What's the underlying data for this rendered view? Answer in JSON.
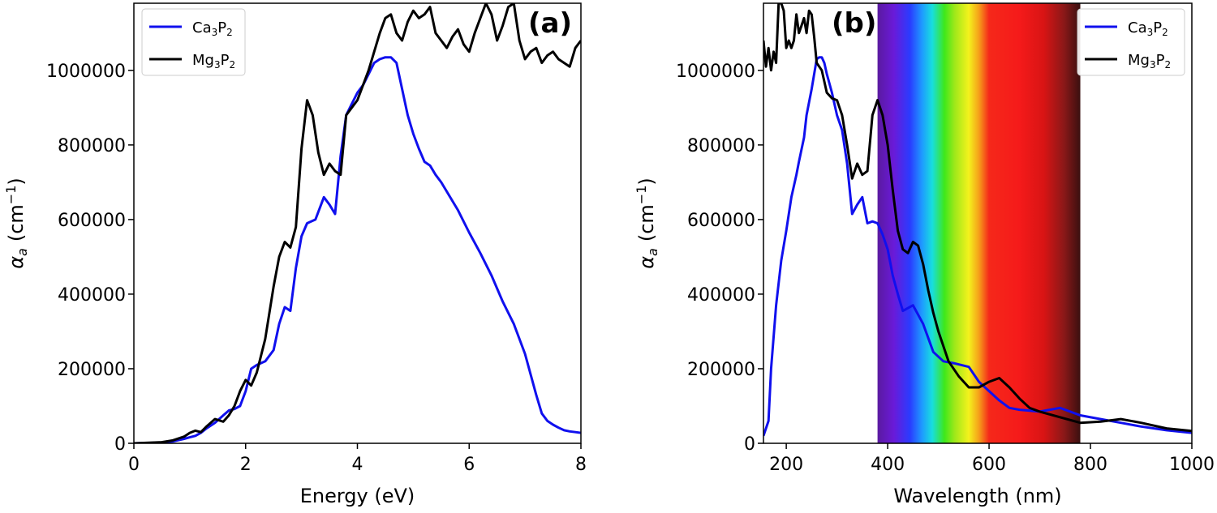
{
  "chart_data": [
    {
      "type": "line",
      "panel_label": "(a)",
      "xlabel": "Energy (eV)",
      "ylabel_main": "α",
      "ylabel_sub": "a",
      "ylabel_unit": "(cm",
      "ylabel_exp": "−1",
      "ylabel_close": ")",
      "xlim": [
        0,
        8
      ],
      "ylim": [
        0,
        1180000
      ],
      "xticks": [
        0,
        2,
        4,
        6,
        8
      ],
      "xtick_labels": [
        "0",
        "2",
        "4",
        "6",
        "8"
      ],
      "yticks": [
        0,
        200000,
        400000,
        600000,
        800000,
        1000000
      ],
      "ytick_labels": [
        "0",
        "200000",
        "400000",
        "600000",
        "800000",
        "1000000"
      ],
      "grid": false,
      "legend_position": "top-left",
      "series": [
        {
          "name": "Ca3P2",
          "name_parts": [
            "Ca",
            "3",
            "P",
            "2"
          ],
          "color": "#1010ee",
          "x": [
            0,
            0.5,
            0.7,
            0.9,
            1.0,
            1.1,
            1.2,
            1.3,
            1.45,
            1.6,
            1.7,
            1.8,
            1.9,
            2.0,
            2.1,
            2.2,
            2.35,
            2.5,
            2.6,
            2.7,
            2.8,
            2.9,
            3.0,
            3.1,
            3.25,
            3.4,
            3.5,
            3.6,
            3.7,
            3.8,
            3.9,
            4.0,
            4.1,
            4.2,
            4.3,
            4.4,
            4.5,
            4.6,
            4.7,
            4.8,
            4.9,
            5.0,
            5.1,
            5.2,
            5.3,
            5.4,
            5.5,
            5.6,
            5.8,
            6.0,
            6.2,
            6.4,
            6.6,
            6.8,
            7.0,
            7.2,
            7.3,
            7.4,
            7.5,
            7.6,
            7.7,
            7.8,
            7.9,
            8.0
          ],
          "y": [
            0,
            2000,
            5000,
            12000,
            16000,
            20000,
            28000,
            40000,
            55000,
            75000,
            88000,
            92000,
            100000,
            140000,
            200000,
            210000,
            220000,
            250000,
            320000,
            365000,
            355000,
            470000,
            555000,
            590000,
            600000,
            660000,
            640000,
            615000,
            770000,
            880000,
            910000,
            940000,
            960000,
            990000,
            1020000,
            1030000,
            1035000,
            1035000,
            1020000,
            950000,
            880000,
            830000,
            790000,
            755000,
            745000,
            720000,
            700000,
            675000,
            625000,
            565000,
            510000,
            450000,
            380000,
            320000,
            240000,
            130000,
            80000,
            60000,
            50000,
            42000,
            35000,
            32000,
            30000,
            28000
          ]
        },
        {
          "name": "Mg3P2",
          "name_parts": [
            "Mg",
            "3",
            "P",
            "2"
          ],
          "color": "#000000",
          "x": [
            0,
            0.5,
            0.7,
            0.9,
            1.0,
            1.1,
            1.2,
            1.3,
            1.45,
            1.6,
            1.7,
            1.8,
            1.9,
            2.0,
            2.1,
            2.2,
            2.35,
            2.5,
            2.6,
            2.7,
            2.8,
            2.9,
            3.0,
            3.1,
            3.2,
            3.3,
            3.4,
            3.5,
            3.6,
            3.7,
            3.8,
            3.9,
            4.0,
            4.1,
            4.2,
            4.3,
            4.4,
            4.5,
            4.6,
            4.7,
            4.8,
            4.9,
            5.0,
            5.1,
            5.2,
            5.3,
            5.4,
            5.5,
            5.6,
            5.7,
            5.8,
            5.9,
            6.0,
            6.1,
            6.2,
            6.3,
            6.4,
            6.5,
            6.6,
            6.7,
            6.8,
            6.9,
            7.0,
            7.1,
            7.2,
            7.3,
            7.4,
            7.5,
            7.6,
            7.7,
            7.8,
            7.9,
            8.0
          ],
          "y": [
            0,
            3000,
            8000,
            18000,
            28000,
            34000,
            30000,
            45000,
            65000,
            58000,
            75000,
            100000,
            140000,
            170000,
            155000,
            190000,
            280000,
            420000,
            500000,
            540000,
            525000,
            580000,
            790000,
            920000,
            880000,
            780000,
            720000,
            750000,
            730000,
            720000,
            880000,
            900000,
            920000,
            960000,
            1000000,
            1050000,
            1100000,
            1140000,
            1150000,
            1100000,
            1080000,
            1130000,
            1160000,
            1140000,
            1150000,
            1170000,
            1100000,
            1080000,
            1060000,
            1090000,
            1110000,
            1070000,
            1050000,
            1100000,
            1140000,
            1180000,
            1150000,
            1080000,
            1120000,
            1170000,
            1180000,
            1080000,
            1030000,
            1050000,
            1060000,
            1020000,
            1040000,
            1050000,
            1030000,
            1020000,
            1010000,
            1060000,
            1080000
          ]
        }
      ]
    },
    {
      "type": "line",
      "panel_label": "(b)",
      "xlabel": "Wavelength (nm)",
      "ylabel_main": "α",
      "ylabel_sub": "a",
      "ylabel_unit": "(cm",
      "ylabel_exp": "−1",
      "ylabel_close": ")",
      "xlim": [
        155,
        1000
      ],
      "ylim": [
        0,
        1180000
      ],
      "xticks": [
        200,
        400,
        600,
        800,
        1000
      ],
      "xtick_labels": [
        "200",
        "400",
        "600",
        "800",
        "1000"
      ],
      "yticks": [
        0,
        200000,
        400000,
        600000,
        800000,
        1000000
      ],
      "ytick_labels": [
        "0",
        "200000",
        "400000",
        "600000",
        "800000",
        "1000000"
      ],
      "grid": false,
      "legend_position": "top-right",
      "visible_band": {
        "range_nm": [
          380,
          780
        ],
        "colors": [
          "#5a1aa0",
          "#6a1ad8",
          "#2a3cff",
          "#1e9bff",
          "#18dede",
          "#3ee81a",
          "#9ee81a",
          "#f4f21c",
          "#f5a01a",
          "#f5281a",
          "#f51a1a",
          "#d81414",
          "#8a1818",
          "#3a1010"
        ],
        "stops": [
          0,
          0.08,
          0.16,
          0.22,
          0.27,
          0.33,
          0.38,
          0.45,
          0.5,
          0.55,
          0.7,
          0.82,
          0.92,
          1
        ]
      },
      "series": [
        {
          "name": "Ca3P2",
          "name_parts": [
            "Ca",
            "3",
            "P",
            "2"
          ],
          "color": "#1010ee",
          "x": [
            155,
            165,
            170,
            180,
            190,
            200,
            210,
            220,
            225,
            235,
            240,
            250,
            260,
            265,
            270,
            275,
            280,
            290,
            300,
            310,
            320,
            330,
            340,
            350,
            360,
            370,
            380,
            390,
            400,
            410,
            420,
            430,
            450,
            470,
            490,
            510,
            530,
            560,
            580,
            600,
            620,
            640,
            660,
            700,
            740,
            780,
            820,
            860,
            900,
            950,
            1000
          ],
          "y": [
            20000,
            60000,
            200000,
            370000,
            490000,
            570000,
            660000,
            720000,
            755000,
            820000,
            880000,
            950000,
            1030000,
            1035000,
            1035000,
            1020000,
            990000,
            940000,
            880000,
            840000,
            750000,
            615000,
            640000,
            660000,
            590000,
            595000,
            590000,
            560000,
            520000,
            450000,
            400000,
            355000,
            370000,
            320000,
            245000,
            220000,
            215000,
            205000,
            165000,
            140000,
            115000,
            95000,
            90000,
            85000,
            95000,
            75000,
            65000,
            55000,
            45000,
            35000,
            28000
          ]
        },
        {
          "name": "Mg3P2",
          "name_parts": [
            "Mg",
            "3",
            "P",
            "2"
          ],
          "color": "#000000",
          "x": [
            155,
            160,
            165,
            170,
            175,
            180,
            185,
            190,
            195,
            200,
            205,
            210,
            215,
            220,
            225,
            230,
            235,
            240,
            245,
            250,
            255,
            260,
            270,
            280,
            290,
            300,
            310,
            320,
            330,
            340,
            350,
            360,
            370,
            380,
            390,
            400,
            410,
            420,
            430,
            440,
            450,
            460,
            470,
            480,
            490,
            500,
            520,
            540,
            560,
            580,
            600,
            620,
            640,
            660,
            680,
            700,
            740,
            780,
            820,
            860,
            900,
            950,
            1000
          ],
          "y": [
            1080000,
            1010000,
            1060000,
            1000000,
            1050000,
            1020000,
            1180000,
            1180000,
            1160000,
            1060000,
            1080000,
            1060000,
            1080000,
            1150000,
            1100000,
            1120000,
            1140000,
            1100000,
            1160000,
            1150000,
            1090000,
            1020000,
            1000000,
            940000,
            925000,
            920000,
            880000,
            800000,
            710000,
            750000,
            720000,
            730000,
            880000,
            920000,
            880000,
            800000,
            680000,
            570000,
            520000,
            510000,
            540000,
            530000,
            480000,
            410000,
            350000,
            300000,
            220000,
            180000,
            150000,
            150000,
            165000,
            175000,
            150000,
            120000,
            95000,
            85000,
            70000,
            55000,
            58000,
            65000,
            55000,
            40000,
            33000
          ]
        }
      ]
    }
  ]
}
